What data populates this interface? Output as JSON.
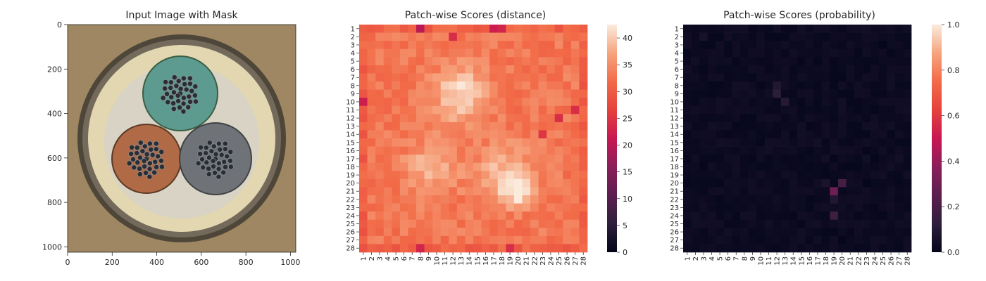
{
  "chart_data": [
    {
      "type": "image",
      "title": "Input Image with Mask",
      "xticks": [
        "0",
        "200",
        "400",
        "600",
        "800",
        "1000"
      ],
      "yticks": [
        "0",
        "200",
        "400",
        "600",
        "800",
        "1000"
      ],
      "xlim": [
        0,
        1024
      ],
      "ylim": [
        1024,
        0
      ],
      "image_content": "cable cross-section with three insulated cores (green, brown, gray) inside a light jacket",
      "core_colors": [
        "#5d9a8f",
        "#b06a45",
        "#6f7276"
      ]
    },
    {
      "type": "heatmap",
      "title": "Patch-wise Scores (distance)",
      "rows": [
        "1",
        "2",
        "3",
        "4",
        "5",
        "6",
        "7",
        "8",
        "9",
        "10",
        "11",
        "12",
        "13",
        "14",
        "15",
        "16",
        "17",
        "18",
        "19",
        "20",
        "21",
        "22",
        "23",
        "24",
        "25",
        "26",
        "27",
        "28"
      ],
      "cols": [
        "1",
        "2",
        "3",
        "4",
        "5",
        "6",
        "7",
        "8",
        "9",
        "10",
        "11",
        "12",
        "13",
        "14",
        "15",
        "16",
        "17",
        "18",
        "19",
        "20",
        "21",
        "22",
        "23",
        "24",
        "25",
        "26",
        "27",
        "28"
      ],
      "colorbar_ticks": [
        "0",
        "5",
        "10",
        "15",
        "20",
        "25",
        "30",
        "35",
        "40"
      ],
      "vmin": 0,
      "vmax": 42.5,
      "colormap": "rocket",
      "base_value": 33,
      "hotspots": [
        {
          "row": 9,
          "col": 13,
          "value": 41.5,
          "spread": 2.3
        },
        {
          "row": 18,
          "col": 9.5,
          "value": 38.5,
          "spread": 2.2
        },
        {
          "row": 19,
          "col": 18.5,
          "value": 39.5,
          "spread": 2.4
        },
        {
          "row": 21,
          "col": 20,
          "value": 41,
          "spread": 1.2
        }
      ],
      "lowspots": [
        {
          "row": 1,
          "col": 8,
          "value": 20
        },
        {
          "row": 1,
          "col": 17,
          "value": 22
        },
        {
          "row": 1,
          "col": 18,
          "value": 23
        },
        {
          "row": 2,
          "col": 12,
          "value": 24
        },
        {
          "row": 10,
          "col": 1,
          "value": 22
        },
        {
          "row": 11,
          "col": 27,
          "value": 24
        },
        {
          "row": 12,
          "col": 25,
          "value": 24
        },
        {
          "row": 14,
          "col": 23,
          "value": 25
        },
        {
          "row": 28,
          "col": 8,
          "value": 23
        },
        {
          "row": 28,
          "col": 19,
          "value": 24
        }
      ]
    },
    {
      "type": "heatmap",
      "title": "Patch-wise Scores (probability)",
      "rows": [
        "1",
        "2",
        "3",
        "4",
        "5",
        "6",
        "7",
        "8",
        "9",
        "10",
        "11",
        "12",
        "13",
        "14",
        "15",
        "16",
        "17",
        "18",
        "19",
        "20",
        "21",
        "22",
        "23",
        "24",
        "25",
        "26",
        "27",
        "28"
      ],
      "cols": [
        "1",
        "2",
        "3",
        "4",
        "5",
        "6",
        "7",
        "8",
        "9",
        "10",
        "11",
        "12",
        "13",
        "14",
        "15",
        "16",
        "17",
        "18",
        "19",
        "20",
        "21",
        "22",
        "23",
        "24",
        "25",
        "26",
        "27",
        "28"
      ],
      "colorbar_ticks": [
        "0.0",
        "0.2",
        "0.4",
        "0.6",
        "0.8",
        "1.0"
      ],
      "vmin": 0,
      "vmax": 1,
      "colormap": "rocket",
      "base_value": 0.01,
      "hotspots": [
        {
          "row": 21,
          "col": 19,
          "value": 0.3
        },
        {
          "row": 20,
          "col": 20,
          "value": 0.18
        },
        {
          "row": 24,
          "col": 19,
          "value": 0.16
        },
        {
          "row": 8,
          "col": 12,
          "value": 0.09
        },
        {
          "row": 9,
          "col": 12,
          "value": 0.12
        },
        {
          "row": 10,
          "col": 13,
          "value": 0.1
        },
        {
          "row": 2,
          "col": 3,
          "value": 0.06
        },
        {
          "row": 20,
          "col": 18,
          "value": 0.07
        },
        {
          "row": 22,
          "col": 19,
          "value": 0.09
        },
        {
          "row": 15,
          "col": 17,
          "value": 0.05
        },
        {
          "row": 17,
          "col": 27,
          "value": 0.05
        }
      ]
    }
  ]
}
